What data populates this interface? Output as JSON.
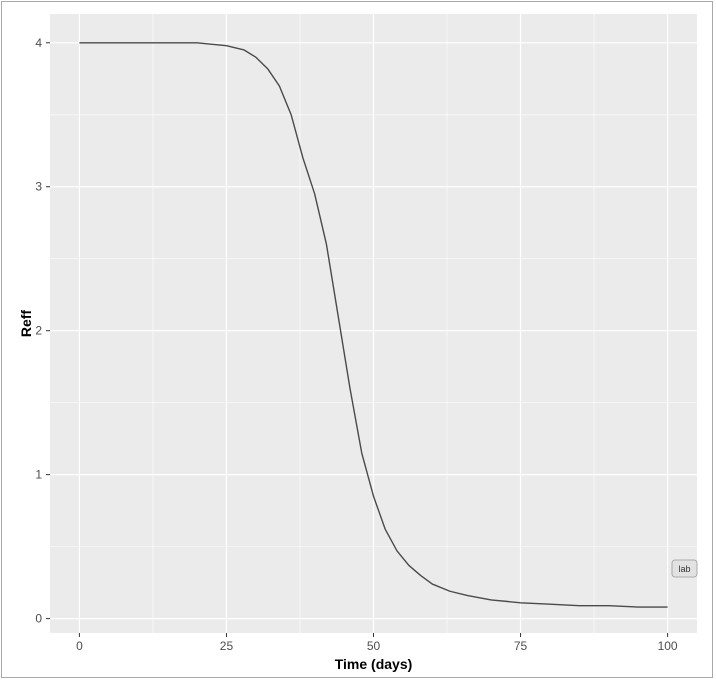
{
  "chart_data": {
    "type": "line",
    "xlabel": "Time (days)",
    "ylabel": "Reff",
    "xlim": [
      -5,
      105
    ],
    "ylim": [
      -0.1,
      4.2
    ],
    "x_ticks": [
      0,
      25,
      50,
      75,
      100
    ],
    "y_ticks": [
      0,
      1,
      2,
      3,
      4
    ],
    "x_tick_labels": [
      "0",
      "25",
      "50",
      "75",
      "100"
    ],
    "y_tick_labels": [
      "0",
      "1",
      "2",
      "3",
      "4"
    ],
    "grid": true,
    "series": [
      {
        "x": [
          0,
          5,
          10,
          15,
          20,
          25,
          28,
          30,
          32,
          34,
          36,
          38,
          40,
          42,
          44,
          46,
          48,
          50,
          52,
          54,
          56,
          58,
          60,
          63,
          66,
          70,
          75,
          80,
          85,
          90,
          95,
          100
        ],
        "y": [
          4.0,
          4.0,
          4.0,
          4.0,
          4.0,
          3.98,
          3.95,
          3.9,
          3.82,
          3.7,
          3.5,
          3.2,
          2.95,
          2.6,
          2.1,
          1.6,
          1.15,
          0.85,
          0.62,
          0.47,
          0.37,
          0.3,
          0.24,
          0.19,
          0.16,
          0.13,
          0.11,
          0.1,
          0.09,
          0.09,
          0.08,
          0.08
        ],
        "color": "#4a4a4a"
      }
    ],
    "annotation": "lab"
  },
  "colors": {
    "panel_background": "#ebebeb",
    "grid_major": "#ffffff",
    "line": "#4a4a4a"
  }
}
